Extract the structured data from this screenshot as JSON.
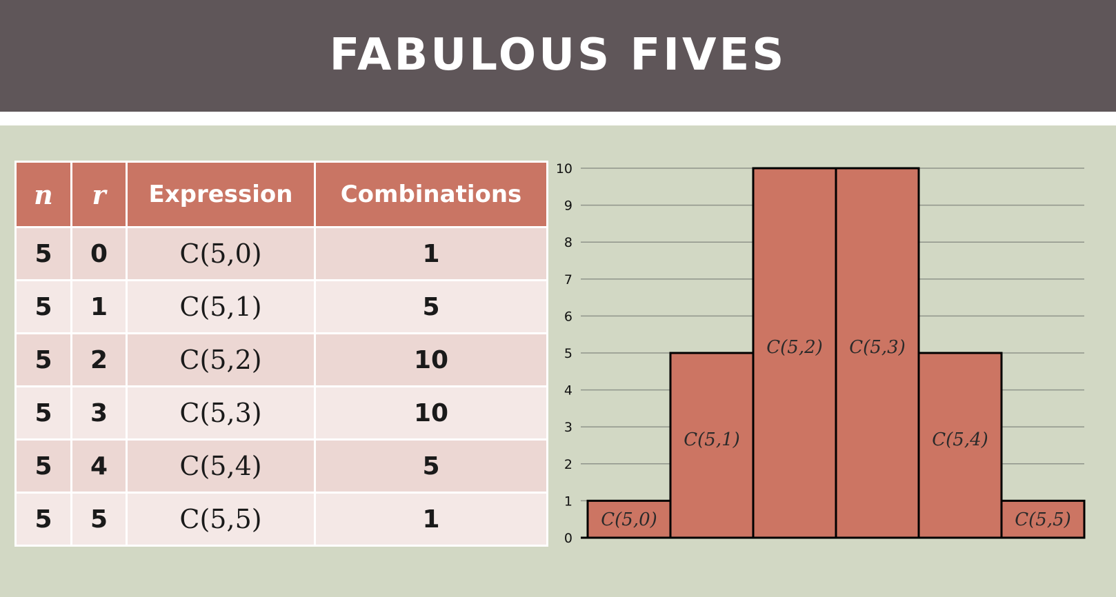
{
  "title": "FABULOUS FIVES",
  "table": {
    "headers": [
      "n",
      "r",
      "Expression",
      "Combinations"
    ],
    "rows": [
      [
        "5",
        "0",
        "C(5,0)",
        "1"
      ],
      [
        "5",
        "1",
        "C(5,1)",
        "5"
      ],
      [
        "5",
        "2",
        "C(5,2)",
        "10"
      ],
      [
        "5",
        "3",
        "C(5,3)",
        "10"
      ],
      [
        "5",
        "4",
        "C(5,4)",
        "5"
      ],
      [
        "5",
        "5",
        "C(5,5)",
        "1"
      ]
    ]
  },
  "colors": {
    "header_bg": "#5f5659",
    "slide_bg": "#d2d8c4",
    "accent": "#c97564",
    "row_odd": "#ecd7d3",
    "row_even": "#f4e8e6",
    "bar_fill": "#cc7563"
  },
  "chart_data": {
    "type": "bar",
    "categories": [
      "C(5,0)",
      "C(5,1)",
      "C(5,2)",
      "C(5,3)",
      "C(5,4)",
      "C(5,5)"
    ],
    "values": [
      1,
      5,
      10,
      10,
      5,
      1
    ],
    "title": "",
    "xlabel": "",
    "ylabel": "",
    "ylim": [
      0,
      10
    ],
    "yticks": [
      "0",
      "1",
      "2",
      "3",
      "4",
      "5",
      "6",
      "7",
      "8",
      "9",
      "10"
    ],
    "grid": true,
    "legend": "none",
    "bar_labels_inside": true
  }
}
